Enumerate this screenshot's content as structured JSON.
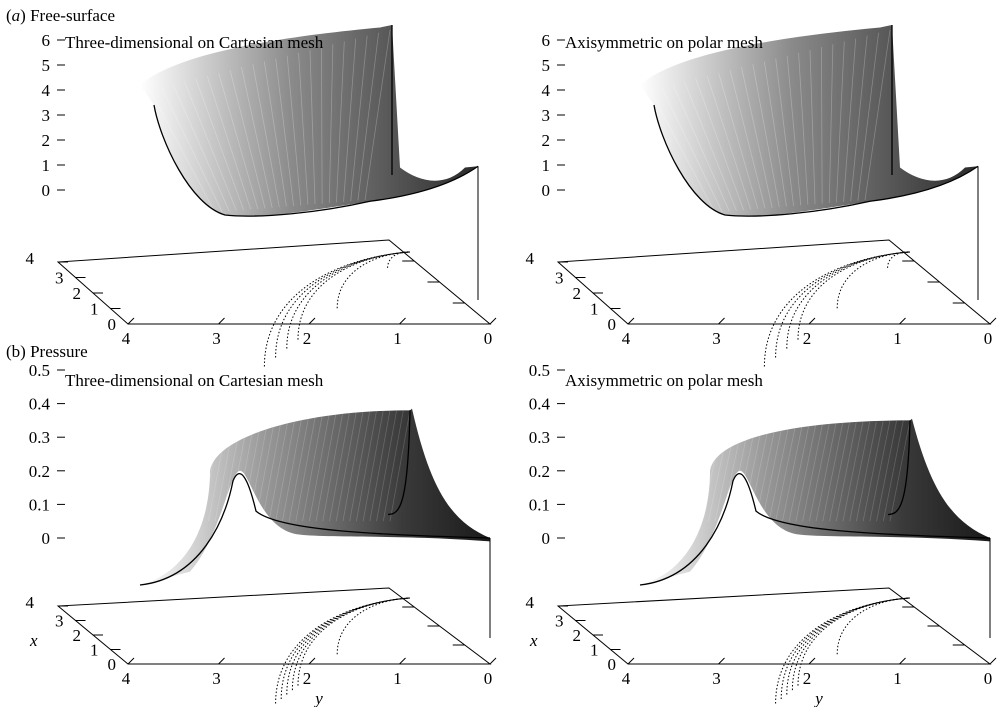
{
  "figure": {
    "sections": [
      {
        "label_prefix": "(",
        "label_letter": "a",
        "label_suffix": ") Free-surface"
      },
      {
        "label_prefix": "(b) Pressure",
        "label_letter": "",
        "label_suffix": ""
      }
    ]
  },
  "colors": {
    "ink": "#000000",
    "surface_light": "#f2f2f2",
    "surface_dark": "#1a1a1a",
    "contour": "#000000"
  },
  "chart_data": [
    {
      "type": "surface",
      "title": "Three-dimensional on Cartesian mesh",
      "z_ticks": [
        "6",
        "5",
        "4",
        "3",
        "2",
        "1",
        "0"
      ],
      "x_ticks": [
        "4",
        "3",
        "2",
        "1",
        "0"
      ],
      "y_ticks": [
        "4",
        "3",
        "2",
        "1",
        "0"
      ],
      "xlabel": "",
      "ylabel": "",
      "zlim": [
        -1,
        6
      ],
      "xlim": [
        0,
        4
      ],
      "ylim": [
        0,
        4
      ],
      "surface_profile": {
        "r": [
          0.0,
          0.5,
          1.0,
          1.5,
          2.0,
          2.5,
          3.0,
          3.5,
          4.0
        ],
        "z": [
          0.2,
          0.3,
          0.4,
          0.25,
          -0.1,
          -0.5,
          -0.9,
          0.4,
          3.4
        ]
      },
      "front_curve": {
        "y": [
          4.0,
          3.8,
          3.5,
          3.0,
          2.5,
          2.0,
          1.5,
          1.0,
          0.5,
          0.0
        ],
        "z": [
          3.4,
          0.4,
          -0.9,
          -1.0,
          -0.7,
          -0.3,
          0.0,
          0.2,
          0.3,
          0.3
        ]
      },
      "back_curve": {
        "y": [
          0.0,
          0.0
        ],
        "z": [
          0.3,
          6.0
        ]
      },
      "contour_radii": [
        0.4,
        1.3,
        2.0,
        2.2,
        2.4,
        2.6
      ]
    },
    {
      "type": "surface",
      "title": "Axisymmetric on polar mesh",
      "z_ticks": [
        "6",
        "5",
        "4",
        "3",
        "2",
        "1",
        "0"
      ],
      "x_ticks": [
        "4",
        "3",
        "2",
        "1",
        "0"
      ],
      "y_ticks": [
        "4",
        "3",
        "2",
        "1",
        "0"
      ],
      "xlabel": "",
      "ylabel": "",
      "zlim": [
        -1,
        6
      ],
      "xlim": [
        0,
        4
      ],
      "ylim": [
        0,
        4
      ],
      "surface_profile": {
        "r": [
          0.0,
          0.5,
          1.0,
          1.5,
          2.0,
          2.5,
          3.0,
          3.5,
          4.0
        ],
        "z": [
          0.2,
          0.3,
          0.4,
          0.25,
          -0.1,
          -0.5,
          -0.9,
          0.4,
          3.9
        ]
      },
      "front_curve": {
        "y": [
          4.0,
          3.8,
          3.5,
          3.0,
          2.5,
          2.0,
          1.5,
          1.0,
          0.5,
          0.0
        ],
        "z": [
          3.9,
          0.4,
          -0.9,
          -1.0,
          -0.7,
          -0.3,
          0.0,
          0.2,
          0.3,
          0.3
        ]
      },
      "back_curve": {
        "y": [
          0.0,
          0.0
        ],
        "z": [
          0.3,
          6.0
        ]
      },
      "contour_radii": [
        0.4,
        1.3,
        2.0,
        2.2,
        2.4,
        2.6
      ]
    },
    {
      "type": "surface",
      "title": "Three-dimensional on Cartesian mesh",
      "z_ticks": [
        "0.5",
        "0.4",
        "0.3",
        "0.2",
        "0.1",
        "0"
      ],
      "x_ticks": [
        "4",
        "3",
        "2",
        "1",
        "0"
      ],
      "y_ticks": [
        "4",
        "3",
        "2",
        "1",
        "0"
      ],
      "xlabel": "x",
      "ylabel": "y",
      "zlim": [
        -0.15,
        0.5
      ],
      "xlim": [
        0,
        4
      ],
      "ylim": [
        0,
        4
      ],
      "surface_profile": {
        "r": [
          0.0,
          0.5,
          1.0,
          1.5,
          2.0,
          2.4,
          2.8,
          3.2,
          4.0
        ],
        "z": [
          0.38,
          0.38,
          0.37,
          0.36,
          0.33,
          0.28,
          0.2,
          0.02,
          -0.15
        ]
      },
      "front_curve": {
        "y": [
          4.0,
          3.6,
          3.3,
          3.05,
          2.9,
          2.8,
          2.5,
          2.0,
          1.0,
          0.0
        ],
        "z": [
          -0.15,
          -0.12,
          -0.05,
          0.1,
          0.2,
          0.15,
          0.05,
          0.01,
          0.0,
          0.0
        ]
      },
      "back_curve": {
        "y": [
          0.6,
          0.3,
          0.15,
          0.1
        ],
        "z": [
          0.07,
          0.12,
          0.25,
          0.38
        ]
      },
      "contour_radii": [
        1.3,
        2.0,
        2.1,
        2.2,
        2.3,
        2.4
      ]
    },
    {
      "type": "surface",
      "title": "Axisymmetric on polar mesh",
      "z_ticks": [
        "0.5",
        "0.4",
        "0.3",
        "0.2",
        "0.1",
        "0"
      ],
      "x_ticks": [
        "4",
        "3",
        "2",
        "1",
        "0"
      ],
      "y_ticks": [
        "4",
        "3",
        "2",
        "1",
        "0"
      ],
      "xlabel": "x",
      "ylabel": "y",
      "zlim": [
        -0.15,
        0.5
      ],
      "xlim": [
        0,
        4
      ],
      "ylim": [
        0,
        4
      ],
      "surface_profile": {
        "r": [
          0.0,
          0.5,
          1.0,
          1.5,
          2.0,
          2.4,
          2.8,
          3.2,
          4.0
        ],
        "z": [
          0.35,
          0.34,
          0.33,
          0.31,
          0.29,
          0.25,
          0.18,
          0.02,
          -0.15
        ]
      },
      "front_curve": {
        "y": [
          4.0,
          3.6,
          3.3,
          3.05,
          2.9,
          2.8,
          2.5,
          2.0,
          1.0,
          0.0
        ],
        "z": [
          -0.15,
          -0.12,
          -0.05,
          0.08,
          0.16,
          0.12,
          0.04,
          0.01,
          0.0,
          0.0
        ]
      },
      "back_curve": {
        "y": [
          0.6,
          0.3,
          0.15,
          0.1
        ],
        "z": [
          0.07,
          0.12,
          0.25,
          0.35
        ]
      },
      "contour_radii": [
        1.3,
        2.0,
        2.1,
        2.2,
        2.3,
        2.4
      ]
    }
  ]
}
